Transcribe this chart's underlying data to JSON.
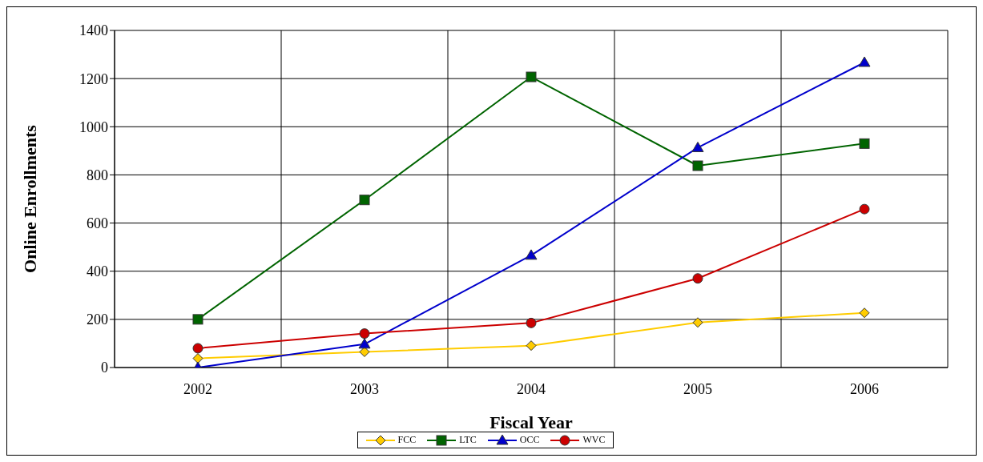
{
  "chart_data": {
    "type": "line",
    "xlabel": "Fiscal Year",
    "ylabel": "Online Enrollments",
    "categories": [
      "2002",
      "2003",
      "2004",
      "2005",
      "2006"
    ],
    "series": [
      {
        "name": "FCC",
        "color": "#ffcc00",
        "marker": "diamond",
        "values": [
          38,
          65,
          91,
          187,
          227
        ]
      },
      {
        "name": "LTC",
        "color": "#006400",
        "marker": "square",
        "values": [
          200,
          696,
          1207,
          838,
          930
        ]
      },
      {
        "name": "OCC",
        "color": "#0000cc",
        "marker": "triangle",
        "values": [
          0,
          97,
          466,
          913,
          1267
        ]
      },
      {
        "name": "WVC",
        "color": "#cc0000",
        "marker": "circle",
        "values": [
          80,
          141,
          185,
          370,
          658
        ]
      }
    ],
    "ylim": [
      0,
      1400
    ],
    "yticks": [
      0,
      200,
      400,
      600,
      800,
      1000,
      1200,
      1400
    ],
    "grid": true,
    "legend": "bottom"
  }
}
